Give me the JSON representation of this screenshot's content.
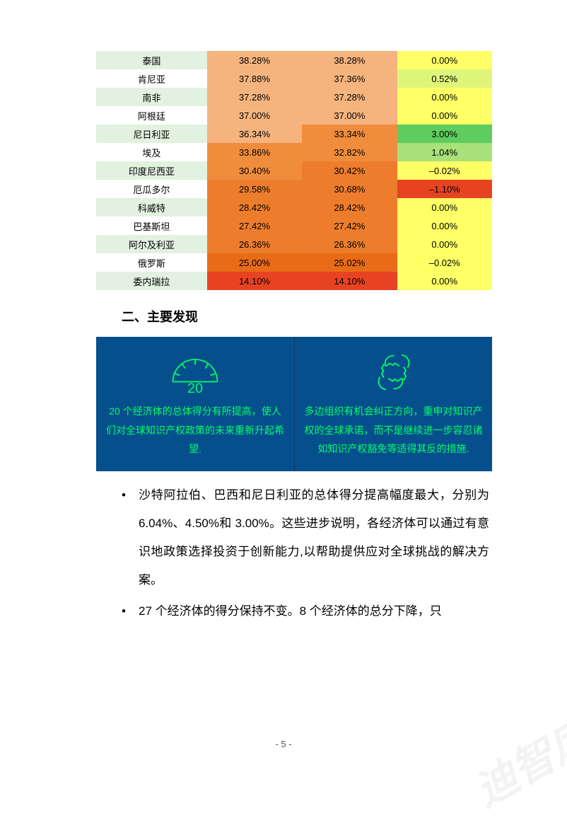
{
  "colors": {
    "header_bg": "#e2f1e0",
    "country_even": "#e2f1e0",
    "country_odd": "#ffffff",
    "orange_light": "#f5b47e",
    "orange_med": "#f08d3d",
    "orange_dark": "#ed7d2c",
    "orange_darker": "#e96b18",
    "red": "#e74323",
    "yellow": "#ffff66",
    "yellow_green": "#dff57a",
    "green_light": "#a8e07a",
    "green_mid": "#7fd36a",
    "green_bright": "#5ecc5e",
    "text": "#000000",
    "info_bg": "#054f8d",
    "info_text": "#00ff66"
  },
  "table": {
    "rows": [
      {
        "country": "泰国",
        "a": "38.28%",
        "a_bg": "#f5b47e",
        "b": "38.28%",
        "b_bg": "#f5b47e",
        "c": "0.00%",
        "c_bg": "#ffff66",
        "country_bg": "#e2f1e0"
      },
      {
        "country": "肯尼亚",
        "a": "37.88%",
        "a_bg": "#f5b47e",
        "b": "37.36%",
        "b_bg": "#f5b47e",
        "c": "0.52%",
        "c_bg": "#dff57a",
        "country_bg": "#ffffff"
      },
      {
        "country": "南非",
        "a": "37.28%",
        "a_bg": "#f5b47e",
        "b": "37.28%",
        "b_bg": "#f5b47e",
        "c": "0.00%",
        "c_bg": "#ffff66",
        "country_bg": "#e2f1e0"
      },
      {
        "country": "阿根廷",
        "a": "37.00%",
        "a_bg": "#f5b47e",
        "b": "37.00%",
        "b_bg": "#f5b47e",
        "c": "0.00%",
        "c_bg": "#ffff66",
        "country_bg": "#ffffff"
      },
      {
        "country": "尼日利亚",
        "a": "36.34%",
        "a_bg": "#f5b47e",
        "b": "33.34%",
        "b_bg": "#f08d3d",
        "c": "3.00%",
        "c_bg": "#5ecc5e",
        "country_bg": "#e2f1e0"
      },
      {
        "country": "埃及",
        "a": "33.86%",
        "a_bg": "#f08d3d",
        "b": "32.82%",
        "b_bg": "#f08d3d",
        "c": "1.04%",
        "c_bg": "#a8e07a",
        "country_bg": "#ffffff"
      },
      {
        "country": "印度尼西亚",
        "a": "30.40%",
        "a_bg": "#f08d3d",
        "b": "30.42%",
        "b_bg": "#ed7d2c",
        "c": "–0.02%",
        "c_bg": "#ffff66",
        "country_bg": "#e2f1e0"
      },
      {
        "country": "厄瓜多尔",
        "a": "29.58%",
        "a_bg": "#ed7d2c",
        "b": "30.68%",
        "b_bg": "#ed7d2c",
        "c": "–1.10%",
        "c_bg": "#e74323",
        "country_bg": "#ffffff"
      },
      {
        "country": "科威特",
        "a": "28.42%",
        "a_bg": "#ed7d2c",
        "b": "28.42%",
        "b_bg": "#ed7d2c",
        "c": "0.00%",
        "c_bg": "#ffff66",
        "country_bg": "#e2f1e0"
      },
      {
        "country": "巴基斯坦",
        "a": "27.42%",
        "a_bg": "#ed7d2c",
        "b": "27.42%",
        "b_bg": "#ed7d2c",
        "c": "0.00%",
        "c_bg": "#ffff66",
        "country_bg": "#ffffff"
      },
      {
        "country": "阿尔及利亚",
        "a": "26.36%",
        "a_bg": "#ed7d2c",
        "b": "26.36%",
        "b_bg": "#ed7d2c",
        "c": "0.00%",
        "c_bg": "#ffff66",
        "country_bg": "#e2f1e0"
      },
      {
        "country": "俄罗斯",
        "a": "25.00%",
        "a_bg": "#e96b18",
        "b": "25.02%",
        "b_bg": "#e96b18",
        "c": "–0.02%",
        "c_bg": "#ffff66",
        "country_bg": "#ffffff"
      },
      {
        "country": "委内瑞拉",
        "a": "14.10%",
        "a_bg": "#e74323",
        "b": "14.10%",
        "b_bg": "#e74323",
        "c": "0.00%",
        "c_bg": "#ffff66",
        "country_bg": "#e2f1e0"
      }
    ]
  },
  "heading": "二、主要发现",
  "info": {
    "gauge_value": "20",
    "left_text": "20 个经济体的总体得分有所提高，使人们对全球知识产权政策的未来重新升起希望.",
    "right_text": "多边组织有机会纠正方向，重申对知识产权的全球承诺，而不是继续进一步容忍诸如知识产权豁免等适得其反的措施."
  },
  "bullets": {
    "b1": "沙特阿拉伯、巴西和尼日利亚的总体得分提高幅度最大，分别为 6.04%、4.50%和 3.00%。这些进步说明，各经济体可以通过有意识地政策选择投资于创新能力,以帮助提供应对全球挑战的解决方案。",
    "b2": "27 个经济体的得分保持不变。8 个经济体的总分下降，只"
  },
  "page_num": "- 5 -"
}
